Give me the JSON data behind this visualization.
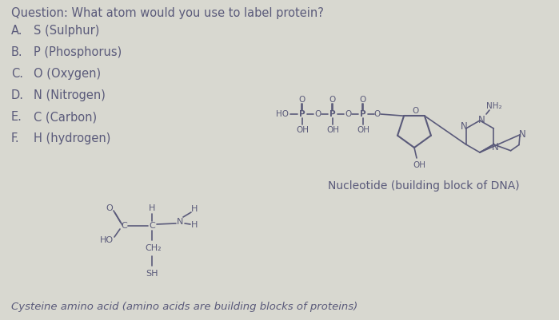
{
  "bg_color": "#d8d8d0",
  "text_color": "#5a5a7a",
  "mol_color": "#5a5a7a",
  "question": "Question: What atom would you use to label protein?",
  "options": [
    [
      "A.",
      "S (Sulphur)"
    ],
    [
      "B.",
      "P (Phosphorus)"
    ],
    [
      "C.",
      "O (Oxygen)"
    ],
    [
      "D.",
      "N (Nitrogen)"
    ],
    [
      "E.",
      "C (Carbon)"
    ],
    [
      "F.",
      "H (hydrogen)"
    ]
  ],
  "footer": "Cysteine amino acid (amino acids are building blocks of proteins)",
  "nucleotide_label": "Nucleotide (building block of DNA)",
  "title_fontsize": 10.5,
  "option_fontsize": 10.5,
  "footer_fontsize": 9.5,
  "mol_fontsize": 7.5,
  "nuc_label_fontsize": 10
}
